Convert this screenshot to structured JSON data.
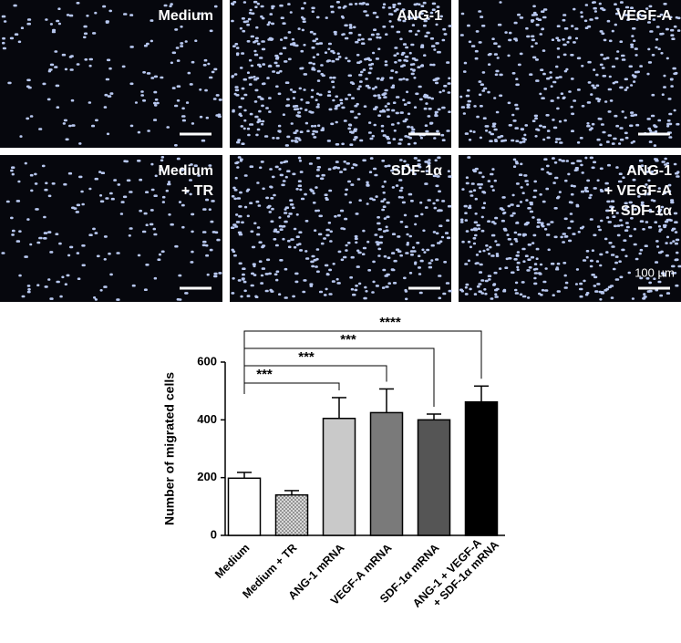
{
  "panels": [
    {
      "lines": [
        "Medium"
      ]
    },
    {
      "lines": [
        "ANG-1"
      ]
    },
    {
      "lines": [
        "VEGF-A"
      ]
    },
    {
      "lines": [
        "Medium",
        "+ TR"
      ]
    },
    {
      "lines": [
        "SDF-1α"
      ]
    },
    {
      "lines": [
        "ANG-1",
        "+ VEGF-A",
        "+ SDF-1α"
      ]
    }
  ],
  "scale_bar_label": "100 µm",
  "chart_data": {
    "type": "bar",
    "ylabel": "Number of migrated cells",
    "categories": [
      "Medium",
      "Medium + TR",
      "ANG-1 mRNA",
      "VEGF-A mRNA",
      "SDF-1α mRNA",
      "ANG-1 + VEGF-A + SDF-1α mRNA"
    ],
    "values": [
      198,
      140,
      405,
      425,
      400,
      462
    ],
    "errors": [
      20,
      15,
      72,
      82,
      20,
      55
    ],
    "colors": [
      "#ffffff",
      "url(#hatch)",
      "#c9c9c9",
      "#7a7a7a",
      "#555555",
      "#000000"
    ],
    "ylim": [
      0,
      600
    ],
    "yticks": [
      0,
      200,
      400,
      600
    ],
    "significance": [
      {
        "from": "Medium",
        "to": "ANG-1 mRNA",
        "label": "***"
      },
      {
        "from": "Medium",
        "to": "VEGF-A mRNA",
        "label": "***"
      },
      {
        "from": "Medium",
        "to": "SDF-1α mRNA",
        "label": "***"
      },
      {
        "from": "Medium",
        "to": "ANG-1 + VEGF-A + SDF-1α mRNA",
        "label": "****"
      }
    ]
  }
}
